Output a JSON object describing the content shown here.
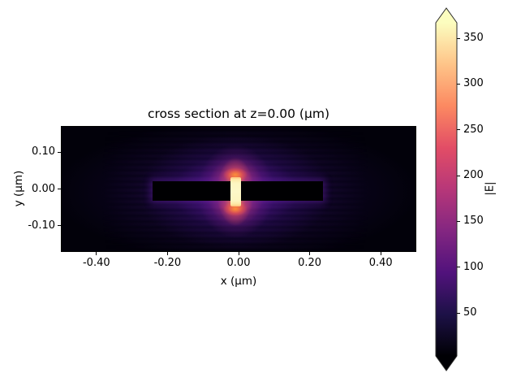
{
  "figure": {
    "background": "#ffffff"
  },
  "chart_data": {
    "type": "heatmap",
    "title": "cross section at z=0.00 (μm)",
    "slice_label": "z=0.00 μm",
    "field_quantity": "|E|",
    "xlabel": "x (μm)",
    "ylabel": "y (μm)",
    "xlim": [
      -0.5,
      0.5
    ],
    "ylim": [
      -0.172,
      0.172
    ],
    "grid": false,
    "xticks": [
      {
        "value": -0.4,
        "label": "-0.40"
      },
      {
        "value": -0.2,
        "label": "-0.20"
      },
      {
        "value": 0.0,
        "label": "0.00"
      },
      {
        "value": 0.2,
        "label": "0.20"
      },
      {
        "value": 0.4,
        "label": "0.40"
      }
    ],
    "yticks": [
      {
        "value": 0.1,
        "label": "0.10"
      },
      {
        "value": 0.0,
        "label": "0.00"
      },
      {
        "value": -0.1,
        "label": "-0.10"
      }
    ],
    "colormap": "magma",
    "colormap_stops": [
      {
        "offset": 0.0,
        "color": "#000004"
      },
      {
        "offset": 0.125,
        "color": "#1d1147"
      },
      {
        "offset": 0.25,
        "color": "#51127c"
      },
      {
        "offset": 0.375,
        "color": "#832681"
      },
      {
        "offset": 0.5,
        "color": "#b73779"
      },
      {
        "offset": 0.625,
        "color": "#e24d66"
      },
      {
        "offset": 0.75,
        "color": "#fc8961"
      },
      {
        "offset": 0.875,
        "color": "#fec488"
      },
      {
        "offset": 1.0,
        "color": "#fcfdbf"
      }
    ],
    "colorbar": {
      "label": "|E|",
      "vmin": 3,
      "vmax": 367,
      "extend": "both",
      "ticks": [
        {
          "value": 50,
          "label": "50"
        },
        {
          "value": 100,
          "label": "100"
        },
        {
          "value": 150,
          "label": "150"
        },
        {
          "value": 200,
          "label": "200"
        },
        {
          "value": 250,
          "label": "250"
        },
        {
          "value": 300,
          "label": "300"
        },
        {
          "value": 350,
          "label": "350"
        }
      ]
    },
    "features": {
      "description": "nanoantenna cross-section: two low-field (black) metal arms with a high-field hotspot in the central gap, surrounded by a purple field glow and faint horizontal interference bands",
      "left_arm": {
        "x0": -0.242,
        "x1": -0.023,
        "y0": -0.033,
        "y1": 0.021,
        "value": 0
      },
      "right_arm": {
        "x0": 0.007,
        "x1": 0.237,
        "y0": -0.033,
        "y1": 0.021,
        "value": 0
      },
      "gap_hotspot": {
        "x0": -0.023,
        "x1": 0.007,
        "y0": -0.047,
        "y1": 0.033,
        "peak_value": 367
      },
      "glow_center": {
        "x": -0.008,
        "y": -0.007
      },
      "background_value": 8
    }
  }
}
